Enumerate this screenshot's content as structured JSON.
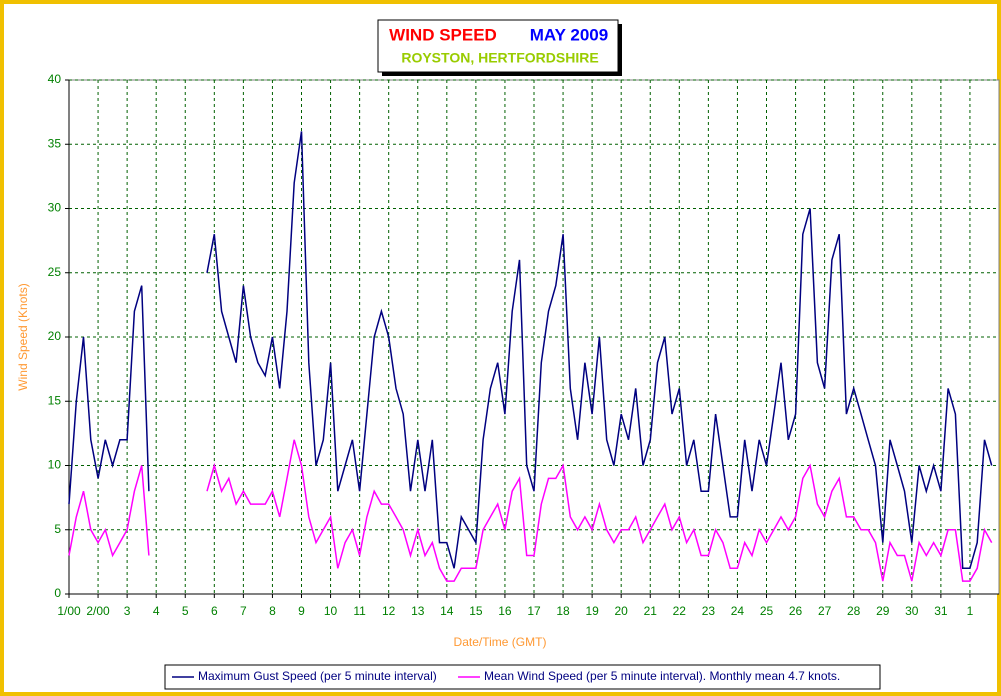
{
  "chart_data": {
    "type": "line",
    "title": "WIND SPEED",
    "title_month": "MAY 2009",
    "subtitle": "ROYSTON, HERTFORDSHIRE",
    "xlabel": "Date/Time (GMT)",
    "ylabel": "Wind Speed (Knots)",
    "grid": true,
    "legend": "bottom",
    "x": [
      0,
      0.25,
      0.5,
      0.75,
      1,
      1.25,
      1.5,
      1.75,
      2,
      2.25,
      2.5,
      2.75,
      3,
      3.25,
      3.5,
      3.75,
      4,
      4.25,
      4.5,
      4.75,
      5,
      5.25,
      5.5,
      5.75,
      6,
      6.25,
      6.5,
      6.75,
      7,
      7.25,
      7.5,
      7.75,
      8,
      8.25,
      8.5,
      8.75,
      9,
      9.25,
      9.5,
      9.75,
      10,
      10.25,
      10.5,
      10.75,
      11,
      11.25,
      11.5,
      11.75,
      12,
      12.25,
      12.5,
      12.75,
      13,
      13.25,
      13.5,
      13.75,
      14,
      14.25,
      14.5,
      14.75,
      15,
      15.25,
      15.5,
      15.75,
      16,
      16.25,
      16.5,
      16.75,
      17,
      17.25,
      17.5,
      17.75,
      18,
      18.25,
      18.5,
      18.75,
      19,
      19.25,
      19.5,
      19.75,
      20,
      20.25,
      20.5,
      20.75,
      21,
      21.25,
      21.5,
      21.75,
      22,
      22.25,
      22.5,
      22.75,
      23,
      23.25,
      23.5,
      23.75,
      24,
      24.25,
      24.5,
      24.75,
      25,
      25.25,
      25.5,
      25.75,
      26,
      26.25,
      26.5,
      26.75,
      27,
      27.25,
      27.5,
      27.75,
      28,
      28.25,
      28.5,
      28.75,
      29,
      29.25,
      29.5,
      29.75,
      30,
      30.25,
      30.5,
      30.75,
      31,
      31.25,
      31.5,
      31.75
    ],
    "series": [
      {
        "name": "Maximum Gust Speed (per 5 minute interval)",
        "color": "#000080",
        "values": [
          7,
          15,
          20,
          12,
          9,
          12,
          10,
          12,
          12,
          22,
          24,
          8,
          null,
          null,
          null,
          null,
          null,
          null,
          null,
          25,
          28,
          22,
          20,
          18,
          24,
          20,
          18,
          17,
          20,
          16,
          22,
          32,
          36,
          18,
          10,
          12,
          18,
          8,
          10,
          12,
          8,
          14,
          20,
          22,
          20,
          16,
          14,
          8,
          12,
          8,
          12,
          4,
          4,
          2,
          6,
          5,
          4,
          12,
          16,
          18,
          14,
          22,
          26,
          10,
          8,
          18,
          22,
          24,
          28,
          16,
          12,
          18,
          14,
          20,
          12,
          10,
          14,
          12,
          16,
          10,
          12,
          18,
          20,
          14,
          16,
          10,
          12,
          8,
          8,
          14,
          10,
          6,
          6,
          12,
          8,
          12,
          10,
          14,
          18,
          12,
          14,
          28,
          30,
          18,
          16,
          26,
          28,
          14,
          16,
          14,
          12,
          10,
          4,
          12,
          10,
          8,
          4,
          10,
          8,
          10,
          8,
          16,
          14,
          2,
          2,
          4,
          12,
          10
        ]
      },
      {
        "name": "Mean Wind Speed (per 5 minute interval). Monthly mean 4.7 knots.",
        "color": "#ff00ff",
        "values": [
          3,
          6,
          8,
          5,
          4,
          5,
          3,
          4,
          5,
          8,
          10,
          3,
          null,
          null,
          null,
          null,
          null,
          null,
          null,
          8,
          10,
          8,
          9,
          7,
          8,
          7,
          7,
          7,
          8,
          6,
          9,
          12,
          10,
          6,
          4,
          5,
          6,
          2,
          4,
          5,
          3,
          6,
          8,
          7,
          7,
          6,
          5,
          3,
          5,
          3,
          4,
          2,
          1,
          1,
          2,
          2,
          2,
          5,
          6,
          7,
          5,
          8,
          9,
          3,
          3,
          7,
          9,
          9,
          10,
          6,
          5,
          6,
          5,
          7,
          5,
          4,
          5,
          5,
          6,
          4,
          5,
          6,
          7,
          5,
          6,
          4,
          5,
          3,
          3,
          5,
          4,
          2,
          2,
          4,
          3,
          5,
          4,
          5,
          6,
          5,
          6,
          9,
          10,
          7,
          6,
          8,
          9,
          6,
          6,
          5,
          5,
          4,
          1,
          4,
          3,
          3,
          1,
          4,
          3,
          4,
          3,
          5,
          5,
          1,
          1,
          2,
          5,
          4
        ]
      }
    ],
    "xlim": [
      0,
      32
    ],
    "xticks": [
      {
        "value": 0,
        "label": "1/00"
      },
      {
        "value": 1,
        "label": "2/00"
      },
      {
        "value": 2,
        "label": "3"
      },
      {
        "value": 3,
        "label": "4"
      },
      {
        "value": 4,
        "label": "5"
      },
      {
        "value": 5,
        "label": "6"
      },
      {
        "value": 6,
        "label": "7"
      },
      {
        "value": 7,
        "label": "8"
      },
      {
        "value": 8,
        "label": "9"
      },
      {
        "value": 9,
        "label": "10"
      },
      {
        "value": 10,
        "label": "11"
      },
      {
        "value": 11,
        "label": "12"
      },
      {
        "value": 12,
        "label": "13"
      },
      {
        "value": 13,
        "label": "14"
      },
      {
        "value": 14,
        "label": "15"
      },
      {
        "value": 15,
        "label": "16"
      },
      {
        "value": 16,
        "label": "17"
      },
      {
        "value": 17,
        "label": "18"
      },
      {
        "value": 18,
        "label": "19"
      },
      {
        "value": 19,
        "label": "20"
      },
      {
        "value": 20,
        "label": "21"
      },
      {
        "value": 21,
        "label": "22"
      },
      {
        "value": 22,
        "label": "23"
      },
      {
        "value": 23,
        "label": "24"
      },
      {
        "value": 24,
        "label": "25"
      },
      {
        "value": 25,
        "label": "26"
      },
      {
        "value": 26,
        "label": "27"
      },
      {
        "value": 27,
        "label": "28"
      },
      {
        "value": 28,
        "label": "29"
      },
      {
        "value": 29,
        "label": "30"
      },
      {
        "value": 30,
        "label": "31"
      },
      {
        "value": 31,
        "label": "1"
      }
    ],
    "ylim": [
      0,
      40
    ],
    "yticks": [
      0,
      5,
      10,
      15,
      20,
      25,
      30,
      35,
      40
    ]
  }
}
